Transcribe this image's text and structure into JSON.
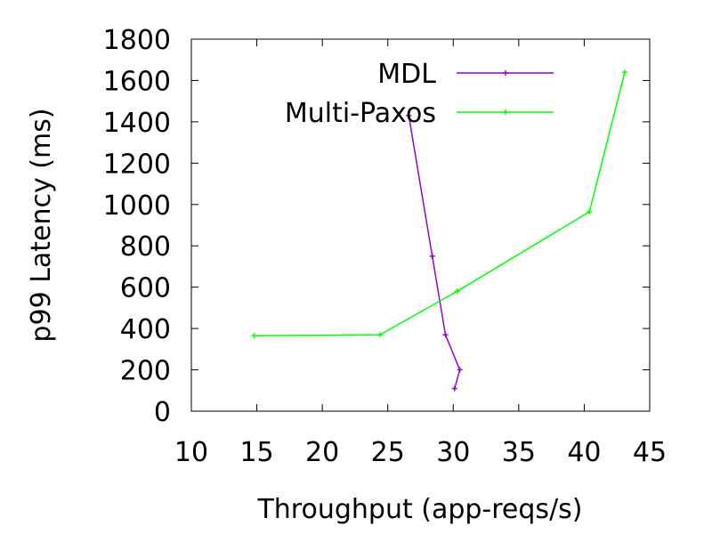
{
  "chart_data": {
    "type": "line",
    "title": "",
    "xlabel": "Throughput (app-reqs/s)",
    "ylabel": "p99 Latency (ms)",
    "xlim": [
      10,
      45
    ],
    "ylim": [
      0,
      1800
    ],
    "xticks": [
      10,
      15,
      20,
      25,
      30,
      35,
      40,
      45
    ],
    "yticks": [
      0,
      200,
      400,
      600,
      800,
      1000,
      1200,
      1400,
      1600,
      1800
    ],
    "grid": false,
    "legend_position": "top-right",
    "series": [
      {
        "name": "MDL",
        "color": "#9400d3",
        "points": [
          [
            26.6,
            1430
          ],
          [
            28.4,
            750
          ],
          [
            29.4,
            370
          ],
          [
            30.5,
            200
          ],
          [
            30.1,
            110
          ]
        ]
      },
      {
        "name": "Multi-Paxos",
        "color": "#00ff00",
        "points": [
          [
            14.8,
            365
          ],
          [
            24.4,
            370
          ],
          [
            30.3,
            580
          ],
          [
            40.4,
            965
          ],
          [
            43.1,
            1640
          ]
        ]
      }
    ]
  }
}
